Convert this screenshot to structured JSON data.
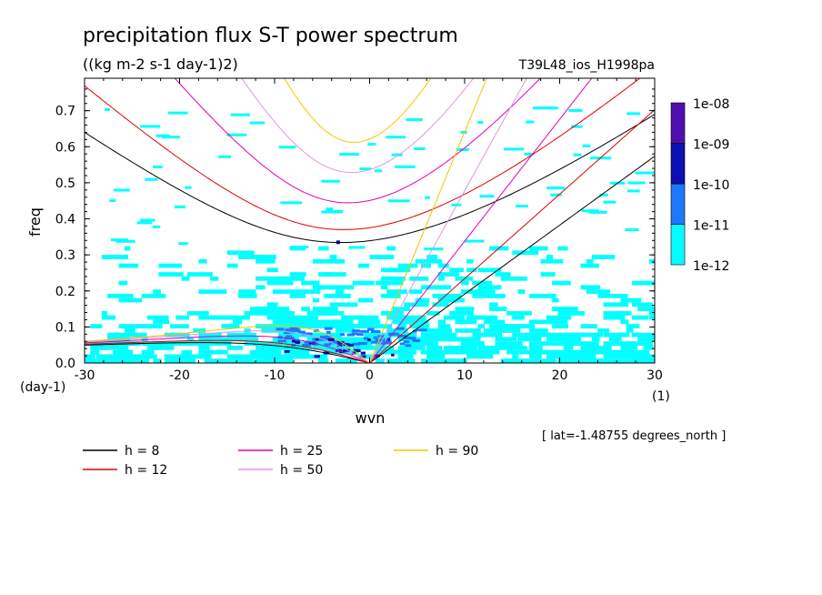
{
  "chart_data": {
    "type": "heatmap",
    "title": "precipitation flux S-T power spectrum",
    "subtitle": "((kg m-2 s-1 day-1)2)",
    "run_label": "T39L48_ios_H1998pa",
    "xlabel": "wvn",
    "ylabel": "freq",
    "x_unit": "(1)",
    "y_unit": "(day-1)",
    "footnote": "[ lat=-1.48755 degrees_north ]",
    "xlim": [
      -30,
      30
    ],
    "ylim": [
      0,
      0.79
    ],
    "x_ticks": [
      "-30",
      "-20",
      "-10",
      "0",
      "10",
      "20",
      "30"
    ],
    "y_ticks": [
      "0.0",
      "0.1",
      "0.2",
      "0.3",
      "0.4",
      "0.5",
      "0.6",
      "0.7"
    ],
    "colorbar": {
      "labels": [
        "1e-12",
        "1e-11",
        "1e-10",
        "1e-09",
        "1e-08"
      ],
      "colors": [
        "#00ffff",
        "#1e78ff",
        "#0a10b4",
        "#5010b0"
      ]
    },
    "dispersion_curves": [
      {
        "label": "h =  8",
        "color": "#000000"
      },
      {
        "label": "h = 12",
        "color": "#e00000"
      },
      {
        "label": "h = 25",
        "color": "#dd00bb"
      },
      {
        "label": "h = 50",
        "color": "#dd99dd"
      },
      {
        "label": "h = 90",
        "color": "#f0c800"
      }
    ],
    "shaded_regions": [
      {
        "x": [
          -30,
          30
        ],
        "y": [
          0,
          0.08
        ],
        "level": "1e-12"
      },
      {
        "x": [
          -10,
          5
        ],
        "y": [
          0.05,
          0.1
        ],
        "level": "1e-11"
      },
      {
        "x": [
          -10,
          3
        ],
        "y": [
          0.02,
          0.05
        ],
        "level": "1e-10"
      }
    ]
  }
}
